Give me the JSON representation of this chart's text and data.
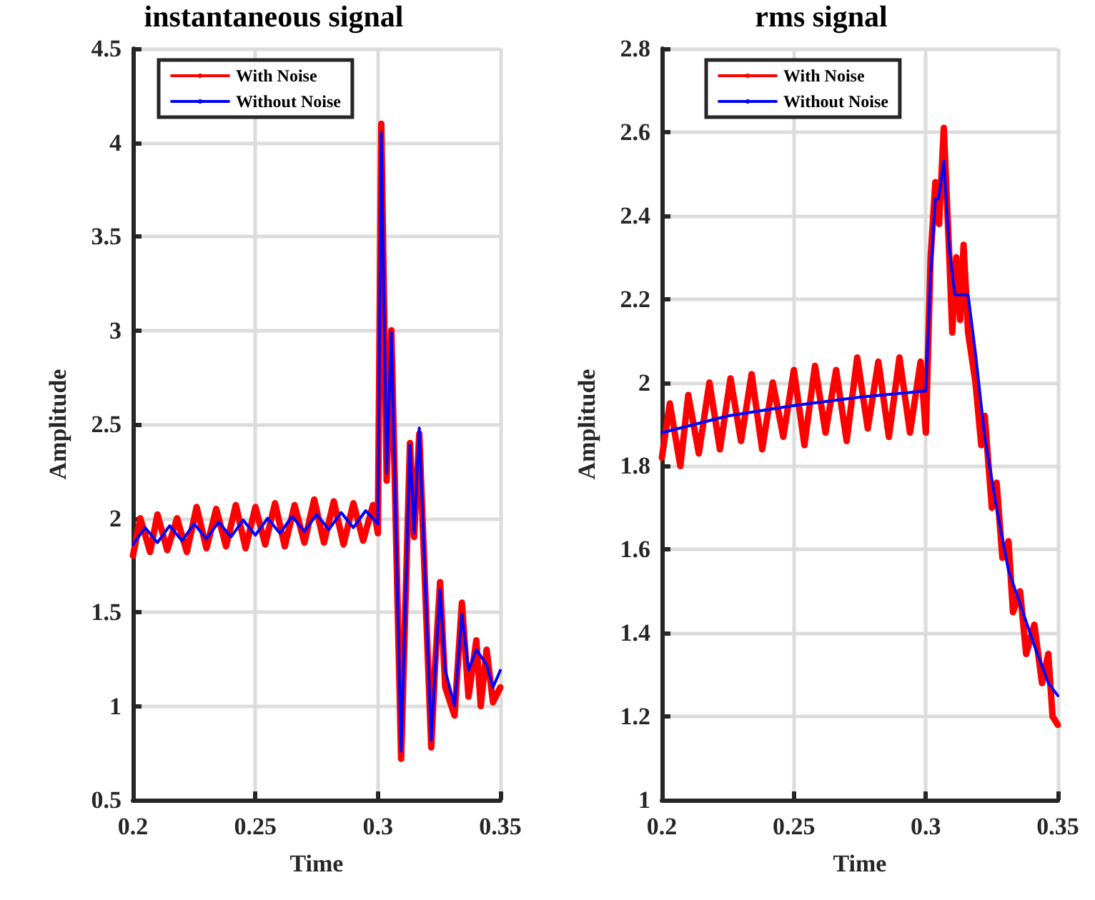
{
  "chart_data": [
    {
      "type": "line",
      "title": "instantaneous signal",
      "xlabel": "Time",
      "ylabel": "Amplitude",
      "xlim": [
        0.2,
        0.35
      ],
      "xticks": [
        0.2,
        0.25,
        0.3,
        0.35
      ],
      "ylim": [
        0.5,
        4.5
      ],
      "yticks": [
        0.5,
        1,
        1.5,
        2,
        2.5,
        3,
        3.5,
        4,
        4.5
      ],
      "grid": true,
      "legend": "top left",
      "marker": "none",
      "line_style": "solid",
      "series": [
        {
          "name": "With Noise",
          "color": "#ff0000",
          "x": [
            0.2,
            0.203,
            0.207,
            0.21,
            0.214,
            0.218,
            0.222,
            0.226,
            0.23,
            0.234,
            0.238,
            0.242,
            0.246,
            0.25,
            0.254,
            0.258,
            0.262,
            0.266,
            0.27,
            0.274,
            0.278,
            0.282,
            0.286,
            0.29,
            0.294,
            0.298,
            0.3,
            0.3014,
            0.3036,
            0.3055,
            0.3095,
            0.3131,
            0.3148,
            0.3169,
            0.3218,
            0.3233,
            0.3254,
            0.3275,
            0.3313,
            0.3343,
            0.337,
            0.3402,
            0.342,
            0.3444,
            0.347,
            0.35
          ],
          "values": [
            1.8,
            2.0,
            1.82,
            2.02,
            1.83,
            2.0,
            1.82,
            2.06,
            1.84,
            2.05,
            1.85,
            2.07,
            1.84,
            2.06,
            1.86,
            2.08,
            1.85,
            2.07,
            1.87,
            2.1,
            1.87,
            2.09,
            1.86,
            2.08,
            1.88,
            2.07,
            1.92,
            4.1,
            2.2,
            3.0,
            0.72,
            2.4,
            1.9,
            2.45,
            0.78,
            1.2,
            1.66,
            1.1,
            0.95,
            1.55,
            1.05,
            1.35,
            1.0,
            1.3,
            1.02,
            1.1
          ]
        },
        {
          "name": "Without Noise",
          "color": "#0000ff",
          "x": [
            0.2,
            0.205,
            0.21,
            0.215,
            0.22,
            0.225,
            0.23,
            0.235,
            0.24,
            0.245,
            0.25,
            0.255,
            0.26,
            0.265,
            0.27,
            0.275,
            0.28,
            0.285,
            0.29,
            0.295,
            0.3,
            0.3014,
            0.3036,
            0.3055,
            0.3095,
            0.3131,
            0.3148,
            0.3169,
            0.3218,
            0.3233,
            0.3254,
            0.3275,
            0.3313,
            0.3343,
            0.337,
            0.3402,
            0.3444,
            0.347,
            0.35
          ],
          "values": [
            1.86,
            1.95,
            1.87,
            1.96,
            1.88,
            1.97,
            1.89,
            1.98,
            1.9,
            1.99,
            1.91,
            2.0,
            1.92,
            2.01,
            1.93,
            2.02,
            1.94,
            2.03,
            1.95,
            2.04,
            1.97,
            4.05,
            2.24,
            2.99,
            0.76,
            2.39,
            1.92,
            2.48,
            0.82,
            1.17,
            1.62,
            1.19,
            1.0,
            1.49,
            1.19,
            1.3,
            1.22,
            1.1,
            1.19
          ]
        }
      ]
    },
    {
      "type": "line",
      "title": "rms signal",
      "xlabel": "Time",
      "ylabel": "Amplitude",
      "xlim": [
        0.2,
        0.35
      ],
      "xticks": [
        0.2,
        0.25,
        0.3,
        0.35
      ],
      "ylim": [
        1,
        2.8
      ],
      "yticks": [
        1,
        1.2,
        1.4,
        1.6,
        1.8,
        2,
        2.2,
        2.4,
        2.6,
        2.8
      ],
      "grid": true,
      "legend": "top left",
      "marker": "none",
      "line_style": "solid",
      "series": [
        {
          "name": "With Noise",
          "color": "#ff0000",
          "x": [
            0.2,
            0.203,
            0.207,
            0.21,
            0.214,
            0.218,
            0.222,
            0.226,
            0.23,
            0.234,
            0.238,
            0.242,
            0.246,
            0.25,
            0.254,
            0.258,
            0.262,
            0.266,
            0.27,
            0.274,
            0.278,
            0.282,
            0.286,
            0.29,
            0.294,
            0.298,
            0.3,
            0.3018,
            0.3036,
            0.305,
            0.3068,
            0.3089,
            0.31,
            0.3115,
            0.313,
            0.3143,
            0.316,
            0.3188,
            0.321,
            0.3223,
            0.325,
            0.3268,
            0.329,
            0.3313,
            0.333,
            0.3357,
            0.338,
            0.3411,
            0.344,
            0.3464,
            0.348,
            0.35
          ],
          "values": [
            1.82,
            1.95,
            1.8,
            1.97,
            1.83,
            2.0,
            1.84,
            2.01,
            1.86,
            2.02,
            1.84,
            2.0,
            1.87,
            2.03,
            1.85,
            2.04,
            1.88,
            2.03,
            1.86,
            2.06,
            1.89,
            2.05,
            1.87,
            2.06,
            1.88,
            2.05,
            1.88,
            2.3,
            2.48,
            2.38,
            2.61,
            2.3,
            2.12,
            2.3,
            2.15,
            2.33,
            2.12,
            2.0,
            1.85,
            1.92,
            1.7,
            1.76,
            1.58,
            1.62,
            1.45,
            1.5,
            1.35,
            1.42,
            1.28,
            1.35,
            1.2,
            1.18
          ]
        },
        {
          "name": "Without Noise",
          "color": "#0000ff",
          "x": [
            0.2,
            0.225,
            0.25,
            0.275,
            0.3,
            0.3018,
            0.3036,
            0.3048,
            0.3068,
            0.3089,
            0.311,
            0.3143,
            0.316,
            0.3188,
            0.3223,
            0.3268,
            0.3313,
            0.3357,
            0.3411,
            0.3464,
            0.35
          ],
          "values": [
            1.88,
            1.92,
            1.945,
            1.965,
            1.98,
            2.26,
            2.44,
            2.44,
            2.53,
            2.32,
            2.21,
            2.21,
            2.21,
            2.07,
            1.87,
            1.7,
            1.55,
            1.47,
            1.37,
            1.28,
            1.25
          ]
        }
      ]
    }
  ]
}
